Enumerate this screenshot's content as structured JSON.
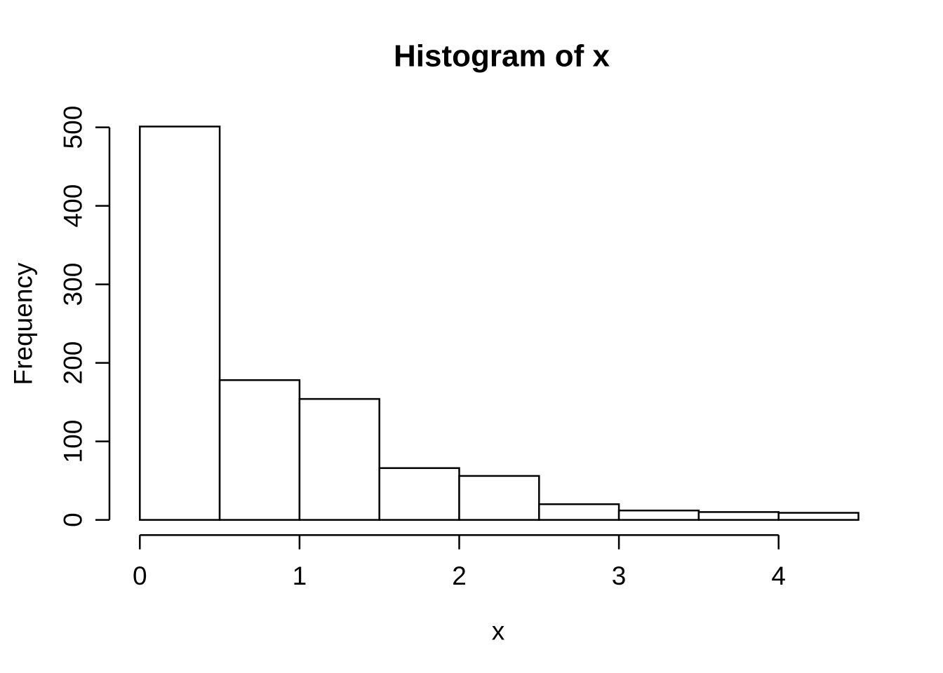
{
  "figure": {
    "title": "Histogram of x",
    "colors": {
      "background": "#ffffff",
      "foreground": "#000000",
      "bar_fill": "#ffffff",
      "bar_stroke": "#000000"
    }
  },
  "chart_data": {
    "type": "bar",
    "subtype": "histogram",
    "title": "Histogram of x",
    "xlabel": "x",
    "ylabel": "Frequency",
    "bin_edges": [
      0,
      0.5,
      1,
      1.5,
      2,
      2.5,
      3,
      3.5,
      4,
      4.5
    ],
    "counts": [
      501,
      178,
      154,
      66,
      56,
      20,
      12,
      10,
      9
    ],
    "x_ticks": [
      0,
      1,
      2,
      3,
      4
    ],
    "y_ticks": [
      0,
      100,
      200,
      300,
      400,
      500
    ],
    "xlim": [
      0,
      4.5
    ],
    "ylim": [
      0,
      500
    ],
    "grid": "off",
    "legend": "none"
  }
}
